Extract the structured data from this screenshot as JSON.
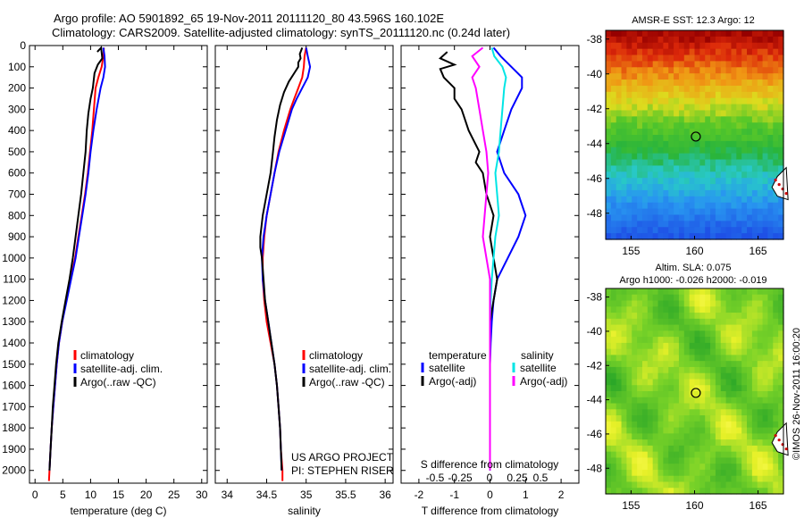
{
  "header": {
    "title_line1": "Argo profile: AO 5901892_65 19-Nov-2011 20111120_80 43.596S 160.102E",
    "title_line2": "Climatology: CARS2009. Satellite-adjusted climatology: synTS_20111120.nc (0.24d later)"
  },
  "colors": {
    "climatology": "#ff0000",
    "satellite": "#0000ff",
    "argo": "#000000",
    "sal_satellite": "#00e5e5",
    "sal_argo": "#ff00ff"
  },
  "chart_data": [
    {
      "type": "line",
      "panel": "temperature",
      "xlabel": "temperature (deg C)",
      "xlim": [
        -1,
        31
      ],
      "xticks": [
        "0",
        "5",
        "10",
        "15",
        "20",
        "25",
        "30"
      ],
      "ylim": [
        2060,
        0
      ],
      "yticks": [
        "0",
        "100",
        "200",
        "300",
        "400",
        "500",
        "600",
        "700",
        "800",
        "900",
        "1000",
        "1100",
        "1200",
        "1300",
        "1400",
        "1500",
        "1600",
        "1700",
        "1800",
        "1900",
        "2000"
      ],
      "legend": [
        "climatology",
        "satellite-adj. clim.",
        "Argo(..raw -QC)"
      ],
      "series": [
        {
          "name": "climatology",
          "color": "#ff0000",
          "points": [
            [
              12.4,
              10
            ],
            [
              12.3,
              50
            ],
            [
              12.0,
              100
            ],
            [
              11.4,
              150
            ],
            [
              10.9,
              200
            ],
            [
              10.6,
              300
            ],
            [
              10.3,
              400
            ],
            [
              9.9,
              500
            ],
            [
              9.5,
              600
            ],
            [
              9.0,
              700
            ],
            [
              8.4,
              800
            ],
            [
              7.8,
              900
            ],
            [
              7.2,
              1000
            ],
            [
              6.4,
              1100
            ],
            [
              5.6,
              1200
            ],
            [
              4.9,
              1300
            ],
            [
              4.3,
              1400
            ],
            [
              3.9,
              1500
            ],
            [
              3.6,
              1600
            ],
            [
              3.3,
              1700
            ],
            [
              3.0,
              1800
            ],
            [
              2.8,
              1900
            ],
            [
              2.6,
              2000
            ],
            [
              2.5,
              2050
            ]
          ]
        },
        {
          "name": "satellite-adj. clim.",
          "color": "#0000ff",
          "points": [
            [
              12.3,
              10
            ],
            [
              12.5,
              50
            ],
            [
              12.6,
              100
            ],
            [
              12.3,
              150
            ],
            [
              11.8,
              200
            ],
            [
              11.1,
              300
            ],
            [
              10.5,
              400
            ],
            [
              10.0,
              500
            ],
            [
              9.6,
              600
            ],
            [
              9.1,
              700
            ],
            [
              8.5,
              800
            ],
            [
              7.9,
              900
            ],
            [
              7.3,
              1000
            ],
            [
              6.5,
              1100
            ],
            [
              5.7,
              1200
            ],
            [
              4.9,
              1300
            ],
            [
              4.3,
              1400
            ],
            [
              3.9,
              1500
            ],
            [
              3.6,
              1600
            ],
            [
              3.3,
              1700
            ],
            [
              3.0,
              1800
            ],
            [
              2.8,
              1900
            ],
            [
              2.6,
              2000
            ]
          ]
        },
        {
          "name": "Argo(..raw -QC)",
          "color": "#000000",
          "points": [
            [
              11.2,
              30
            ],
            [
              11.9,
              10
            ],
            [
              12.1,
              60
            ],
            [
              11.3,
              90
            ],
            [
              11.0,
              110
            ],
            [
              10.7,
              130
            ],
            [
              10.4,
              200
            ],
            [
              10.0,
              250
            ],
            [
              9.6,
              320
            ],
            [
              9.3,
              400
            ],
            [
              9.1,
              500
            ],
            [
              8.7,
              600
            ],
            [
              8.3,
              700
            ],
            [
              7.8,
              800
            ],
            [
              7.3,
              900
            ],
            [
              6.8,
              1000
            ],
            [
              6.2,
              1100
            ],
            [
              5.5,
              1200
            ],
            [
              4.8,
              1300
            ],
            [
              4.2,
              1400
            ],
            [
              3.8,
              1500
            ],
            [
              3.5,
              1600
            ],
            [
              3.2,
              1700
            ],
            [
              3.0,
              1800
            ],
            [
              2.8,
              1900
            ],
            [
              2.6,
              2000
            ]
          ]
        }
      ]
    },
    {
      "type": "line",
      "panel": "salinity",
      "xlabel": "salinity",
      "xlim": [
        33.85,
        36.1
      ],
      "xticks": [
        "34",
        "34.5",
        "35",
        "35.5",
        "36"
      ],
      "ylim": [
        2060,
        0
      ],
      "legend": [
        "climatology",
        "satellite-adj. clim.",
        "Argo(..raw -QC)"
      ],
      "annotation": [
        "US ARGO PROJECT",
        "PI: STEPHEN RISER"
      ],
      "series": [
        {
          "name": "climatology",
          "color": "#ff0000",
          "points": [
            [
              35.0,
              10
            ],
            [
              34.98,
              50
            ],
            [
              34.97,
              100
            ],
            [
              34.95,
              150
            ],
            [
              34.9,
              200
            ],
            [
              34.85,
              250
            ],
            [
              34.8,
              300
            ],
            [
              34.72,
              400
            ],
            [
              34.65,
              500
            ],
            [
              34.6,
              600
            ],
            [
              34.55,
              700
            ],
            [
              34.5,
              800
            ],
            [
              34.47,
              900
            ],
            [
              34.45,
              1000
            ],
            [
              34.45,
              1100
            ],
            [
              34.47,
              1200
            ],
            [
              34.5,
              1300
            ],
            [
              34.55,
              1400
            ],
            [
              34.6,
              1500
            ],
            [
              34.63,
              1600
            ],
            [
              34.65,
              1700
            ],
            [
              34.67,
              1800
            ],
            [
              34.68,
              1900
            ],
            [
              34.7,
              2000
            ],
            [
              34.7,
              2050
            ]
          ]
        },
        {
          "name": "satellite-adj. clim.",
          "color": "#0000ff",
          "points": [
            [
              35.0,
              10
            ],
            [
              35.02,
              50
            ],
            [
              35.05,
              100
            ],
            [
              35.02,
              150
            ],
            [
              34.95,
              200
            ],
            [
              34.88,
              250
            ],
            [
              34.82,
              300
            ],
            [
              34.74,
              400
            ],
            [
              34.66,
              500
            ],
            [
              34.6,
              600
            ],
            [
              34.55,
              700
            ],
            [
              34.5,
              800
            ],
            [
              34.46,
              900
            ],
            [
              34.44,
              1000
            ],
            [
              34.45,
              1100
            ],
            [
              34.48,
              1200
            ],
            [
              34.52,
              1300
            ],
            [
              34.56,
              1400
            ],
            [
              34.6,
              1500
            ],
            [
              34.63,
              1600
            ],
            [
              34.65,
              1700
            ],
            [
              34.67,
              1800
            ],
            [
              34.68,
              1900
            ],
            [
              34.69,
              2000
            ]
          ]
        },
        {
          "name": "Argo(..raw -QC)",
          "color": "#000000",
          "points": [
            [
              34.95,
              10
            ],
            [
              34.92,
              40
            ],
            [
              34.93,
              60
            ],
            [
              34.9,
              80
            ],
            [
              34.9,
              100
            ],
            [
              34.85,
              130
            ],
            [
              34.78,
              170
            ],
            [
              34.72,
              220
            ],
            [
              34.67,
              280
            ],
            [
              34.63,
              350
            ],
            [
              34.6,
              430
            ],
            [
              34.58,
              500
            ],
            [
              34.55,
              600
            ],
            [
              34.5,
              700
            ],
            [
              34.45,
              800
            ],
            [
              34.42,
              900
            ],
            [
              34.42,
              950
            ],
            [
              34.44,
              1000
            ],
            [
              34.46,
              1100
            ],
            [
              34.48,
              1200
            ],
            [
              34.52,
              1300
            ],
            [
              34.56,
              1400
            ],
            [
              34.6,
              1500
            ],
            [
              34.63,
              1600
            ],
            [
              34.65,
              1700
            ],
            [
              34.67,
              1800
            ],
            [
              34.68,
              1900
            ],
            [
              34.69,
              2000
            ]
          ]
        }
      ]
    },
    {
      "type": "line",
      "panel": "differences",
      "xlabel": "T difference from climatology",
      "xlabel_top": "S difference from climatology",
      "xlim": [
        -2.5,
        2.5
      ],
      "xticks": [
        "-2",
        "-1",
        "0",
        "1",
        "2"
      ],
      "xticks_top": [
        "-0.5",
        "-0.25",
        "0",
        "0.25",
        "0.5"
      ],
      "ylim": [
        2060,
        0
      ],
      "legend_left_title": "temperature",
      "legend_right_title": "salinity",
      "legend_left": [
        "satellite",
        "Argo(-adj)"
      ],
      "legend_right": [
        "satellite",
        "Argo(-adj)"
      ],
      "series": [
        {
          "name": "temperature satellite",
          "color": "#0000ff",
          "points": [
            [
              0.1,
              10
            ],
            [
              0.3,
              50
            ],
            [
              0.6,
              100
            ],
            [
              0.9,
              150
            ],
            [
              0.9,
              200
            ],
            [
              0.6,
              300
            ],
            [
              0.4,
              400
            ],
            [
              0.2,
              500
            ],
            [
              0.4,
              600
            ],
            [
              0.8,
              700
            ],
            [
              1.0,
              800
            ],
            [
              0.8,
              900
            ],
            [
              0.5,
              1000
            ],
            [
              0.2,
              1100
            ],
            [
              0.1,
              1200
            ],
            [
              0.05,
              1300
            ],
            [
              0.02,
              1400
            ],
            [
              0.0,
              1500
            ],
            [
              0.0,
              2000
            ]
          ]
        },
        {
          "name": "temperature Argo(-adj)",
          "color": "#000000",
          "points": [
            [
              -1.2,
              30
            ],
            [
              -1.4,
              60
            ],
            [
              -1.0,
              90
            ],
            [
              -1.4,
              110
            ],
            [
              -1.3,
              150
            ],
            [
              -1.0,
              200
            ],
            [
              -1.0,
              250
            ],
            [
              -0.8,
              300
            ],
            [
              -0.6,
              400
            ],
            [
              -0.3,
              500
            ],
            [
              -0.4,
              550
            ],
            [
              -0.2,
              600
            ],
            [
              -0.1,
              700
            ],
            [
              0.1,
              800
            ],
            [
              0.0,
              900
            ],
            [
              0.1,
              1000
            ],
            [
              0.2,
              1100
            ],
            [
              0.1,
              1200
            ],
            [
              0.0,
              1300
            ],
            [
              0.0,
              2000
            ]
          ]
        },
        {
          "name": "salinity satellite",
          "color": "#00e5e5",
          "points": [
            [
              0.05,
              10
            ],
            [
              0.12,
              50
            ],
            [
              0.35,
              100
            ],
            [
              0.45,
              150
            ],
            [
              0.4,
              200
            ],
            [
              0.35,
              300
            ],
            [
              0.3,
              400
            ],
            [
              0.25,
              500
            ],
            [
              0.15,
              600
            ],
            [
              0.2,
              700
            ],
            [
              0.25,
              800
            ],
            [
              0.15,
              900
            ],
            [
              0.1,
              1000
            ],
            [
              0.05,
              1100
            ],
            [
              0.02,
              1200
            ],
            [
              0.0,
              1300
            ],
            [
              0.0,
              2000
            ]
          ]
        },
        {
          "name": "salinity Argo(-adj)",
          "color": "#ff00ff",
          "points": [
            [
              -0.2,
              10
            ],
            [
              -0.5,
              50
            ],
            [
              -0.3,
              100
            ],
            [
              -0.5,
              150
            ],
            [
              -0.4,
              200
            ],
            [
              -0.3,
              300
            ],
            [
              -0.2,
              400
            ],
            [
              -0.1,
              500
            ],
            [
              -0.05,
              600
            ],
            [
              -0.1,
              700
            ],
            [
              -0.15,
              800
            ],
            [
              -0.2,
              900
            ],
            [
              -0.1,
              1000
            ],
            [
              0.0,
              1100
            ],
            [
              0.0,
              2000
            ]
          ]
        }
      ]
    },
    {
      "type": "heatmap",
      "panel": "sst_map",
      "title": "AMSR-E SST: 12.3 Argo: 12",
      "xlim": [
        153,
        167
      ],
      "ylim": [
        -49.5,
        -37.5
      ],
      "xticks": [
        "155",
        "160",
        "165"
      ],
      "yticks": [
        "-38",
        "-40",
        "-42",
        "-44",
        "-46",
        "-48"
      ],
      "marker": [
        160.1,
        -43.6
      ]
    },
    {
      "type": "heatmap",
      "panel": "sla_map",
      "title": "Altim. SLA: 0.075",
      "subtitle": "Argo h1000: -0.026 h2000: -0.019",
      "xlim": [
        153,
        167
      ],
      "ylim": [
        -49.5,
        -37.5
      ],
      "xticks": [
        "155",
        "160",
        "165"
      ],
      "yticks": [
        "-38",
        "-40",
        "-42",
        "-44",
        "-46",
        "-48"
      ],
      "marker": [
        160.1,
        -43.6
      ]
    }
  ],
  "footer": {
    "stamp": "©IMOS 26-Nov-2011 16:00:20"
  }
}
